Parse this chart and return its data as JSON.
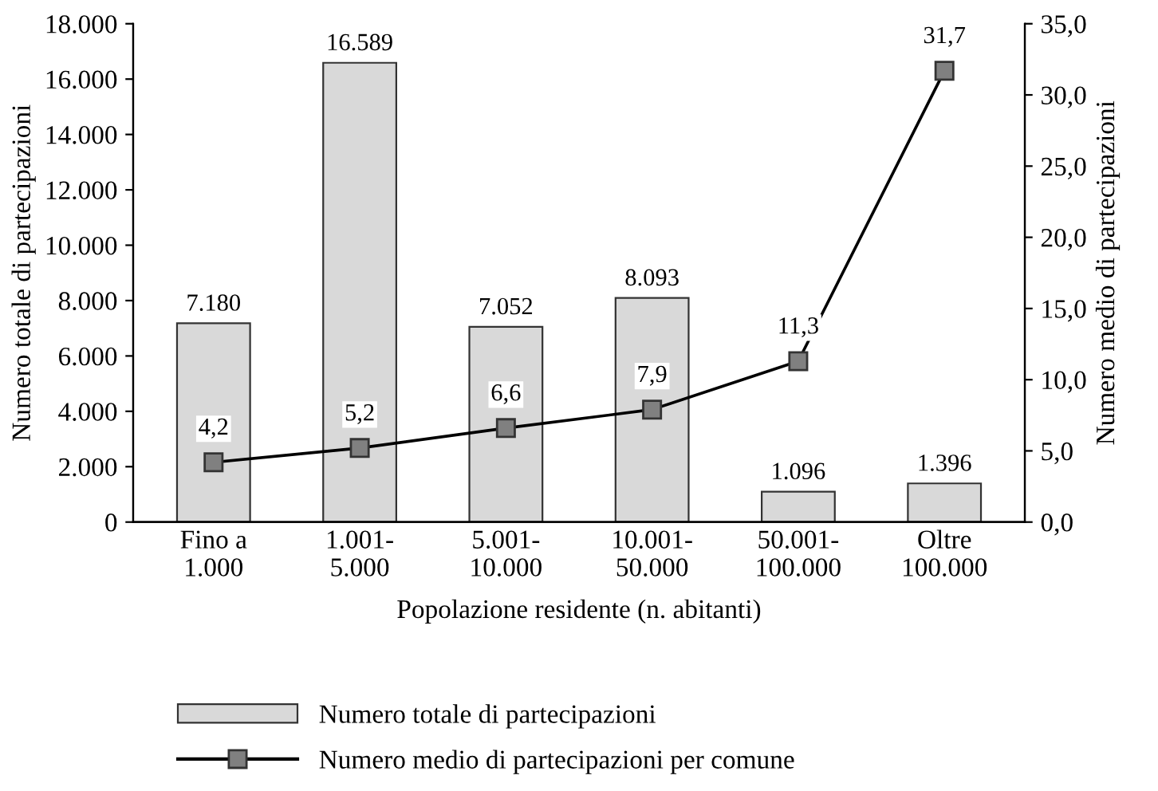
{
  "chart_data": {
    "type": "bar",
    "categories": [
      "Fino a\n1.000",
      "1.001-\n5.000",
      "5.001-\n10.000",
      "10.001-\n50.000",
      "50.001-\n100.000",
      "Oltre\n100.000"
    ],
    "xlabel": "Popolazione residente (n. abitanti)",
    "ylabel": "Numero totale di partecipazioni",
    "y2label": "Numero medio di partecipazioni",
    "series": [
      {
        "name": "Numero totale di partecipazioni",
        "color": "#d9d9d9",
        "values": [
          7180,
          16589,
          7052,
          8093,
          1096,
          1396
        ],
        "value_labels": [
          "7.180",
          "16.589",
          "7.052",
          "8.093",
          "1.096",
          "1.396"
        ]
      },
      {
        "name": "Numero medio di partecipazioni per comune",
        "type": "line",
        "axis": "y2",
        "color": "#808080",
        "marker": "square",
        "values": [
          4.2,
          5.2,
          6.6,
          7.9,
          11.3,
          31.7
        ],
        "value_labels": [
          "4,2",
          "5,2",
          "6,6",
          "7,9",
          "11,3",
          "31,7"
        ]
      }
    ],
    "ylim": [
      0,
      18000
    ],
    "yticks": [
      {
        "value": 0,
        "label": "0"
      },
      {
        "value": 2000,
        "label": "2.000"
      },
      {
        "value": 4000,
        "label": "4.000"
      },
      {
        "value": 6000,
        "label": "6.000"
      },
      {
        "value": 8000,
        "label": "8.000"
      },
      {
        "value": 10000,
        "label": "10.000"
      },
      {
        "value": 12000,
        "label": "12.000"
      },
      {
        "value": 14000,
        "label": "14.000"
      },
      {
        "value": 16000,
        "label": "16.000"
      },
      {
        "value": 18000,
        "label": "18.000"
      }
    ],
    "y2lim": [
      0,
      35
    ],
    "y2ticks": [
      {
        "value": 0,
        "label": "0,0"
      },
      {
        "value": 5,
        "label": "5,0"
      },
      {
        "value": 10,
        "label": "10,0"
      },
      {
        "value": 15,
        "label": "15,0"
      },
      {
        "value": 20,
        "label": "20,0"
      },
      {
        "value": 25,
        "label": "25,0"
      },
      {
        "value": 30,
        "label": "30,0"
      },
      {
        "value": 35,
        "label": "35,0"
      }
    ],
    "grid": false,
    "legend": "bottom"
  }
}
